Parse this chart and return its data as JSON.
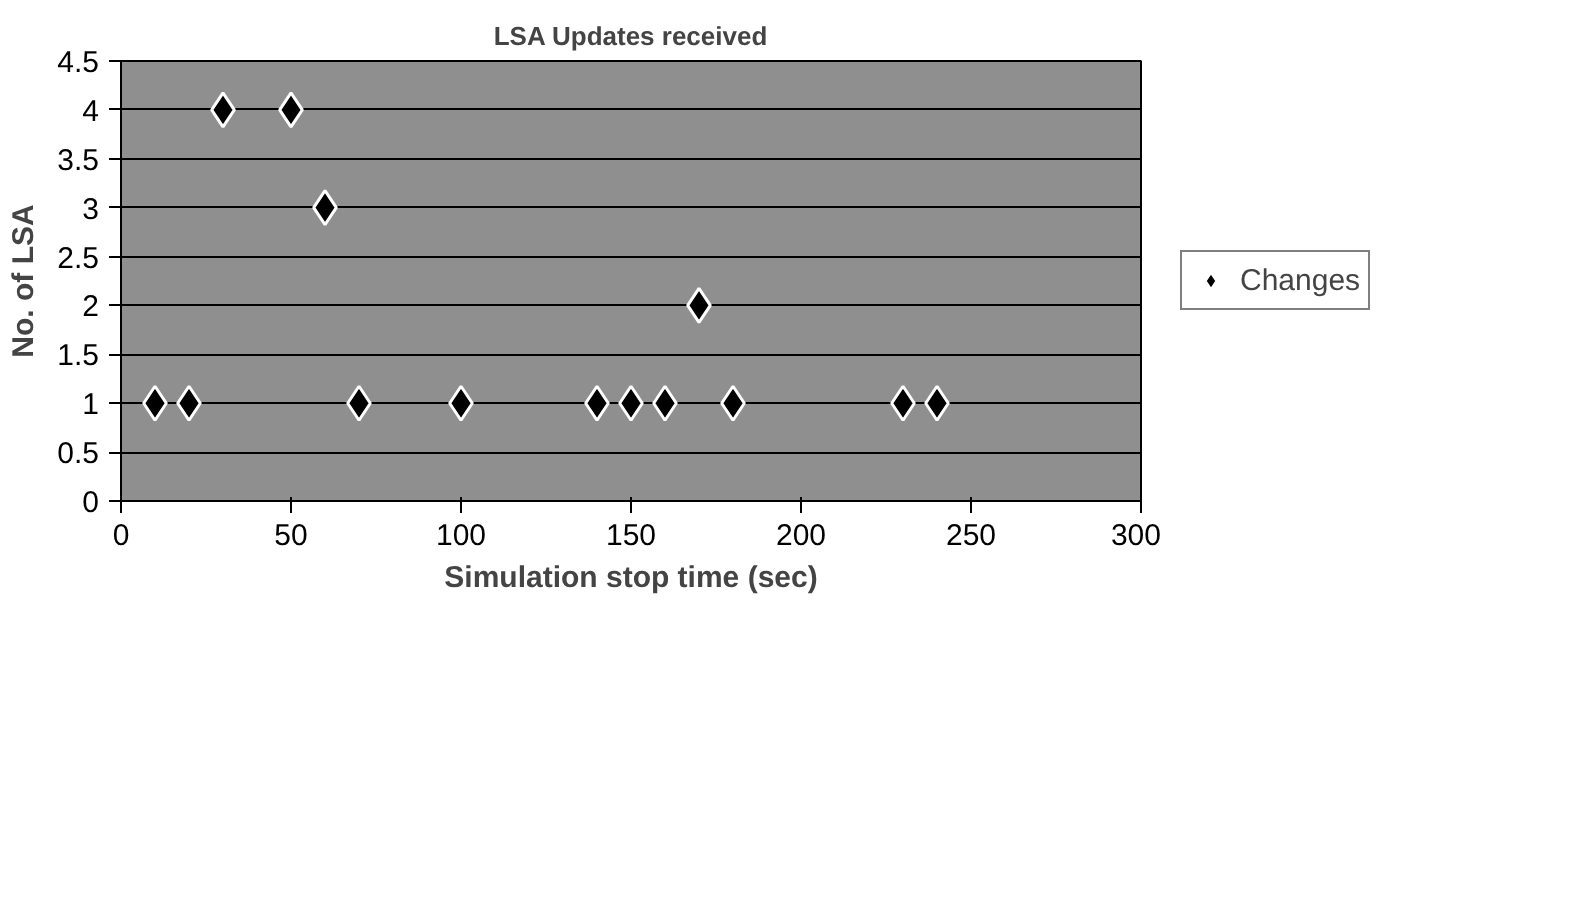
{
  "chart_data": {
    "type": "scatter",
    "title": "LSA Updates received",
    "xlabel": "Simulation stop time (sec)",
    "ylabel": "No. of LSA",
    "x": [
      10,
      20,
      30,
      50,
      60,
      70,
      100,
      140,
      150,
      160,
      170,
      180,
      230,
      240
    ],
    "series": [
      {
        "name": "Changes",
        "color": "#000000",
        "values": [
          1,
          1,
          4,
          4,
          3,
          1,
          1,
          1,
          1,
          1,
          2,
          1,
          1,
          1
        ]
      }
    ],
    "xlim": [
      0,
      300
    ],
    "xticks": [
      0,
      50,
      100,
      150,
      200,
      250,
      300
    ],
    "ylim": [
      0,
      4.5
    ],
    "yticks": [
      0,
      0.5,
      1,
      1.5,
      2,
      2.5,
      3,
      3.5,
      4,
      4.5
    ],
    "grid": "y",
    "legend": "right",
    "marker": "diamond"
  }
}
